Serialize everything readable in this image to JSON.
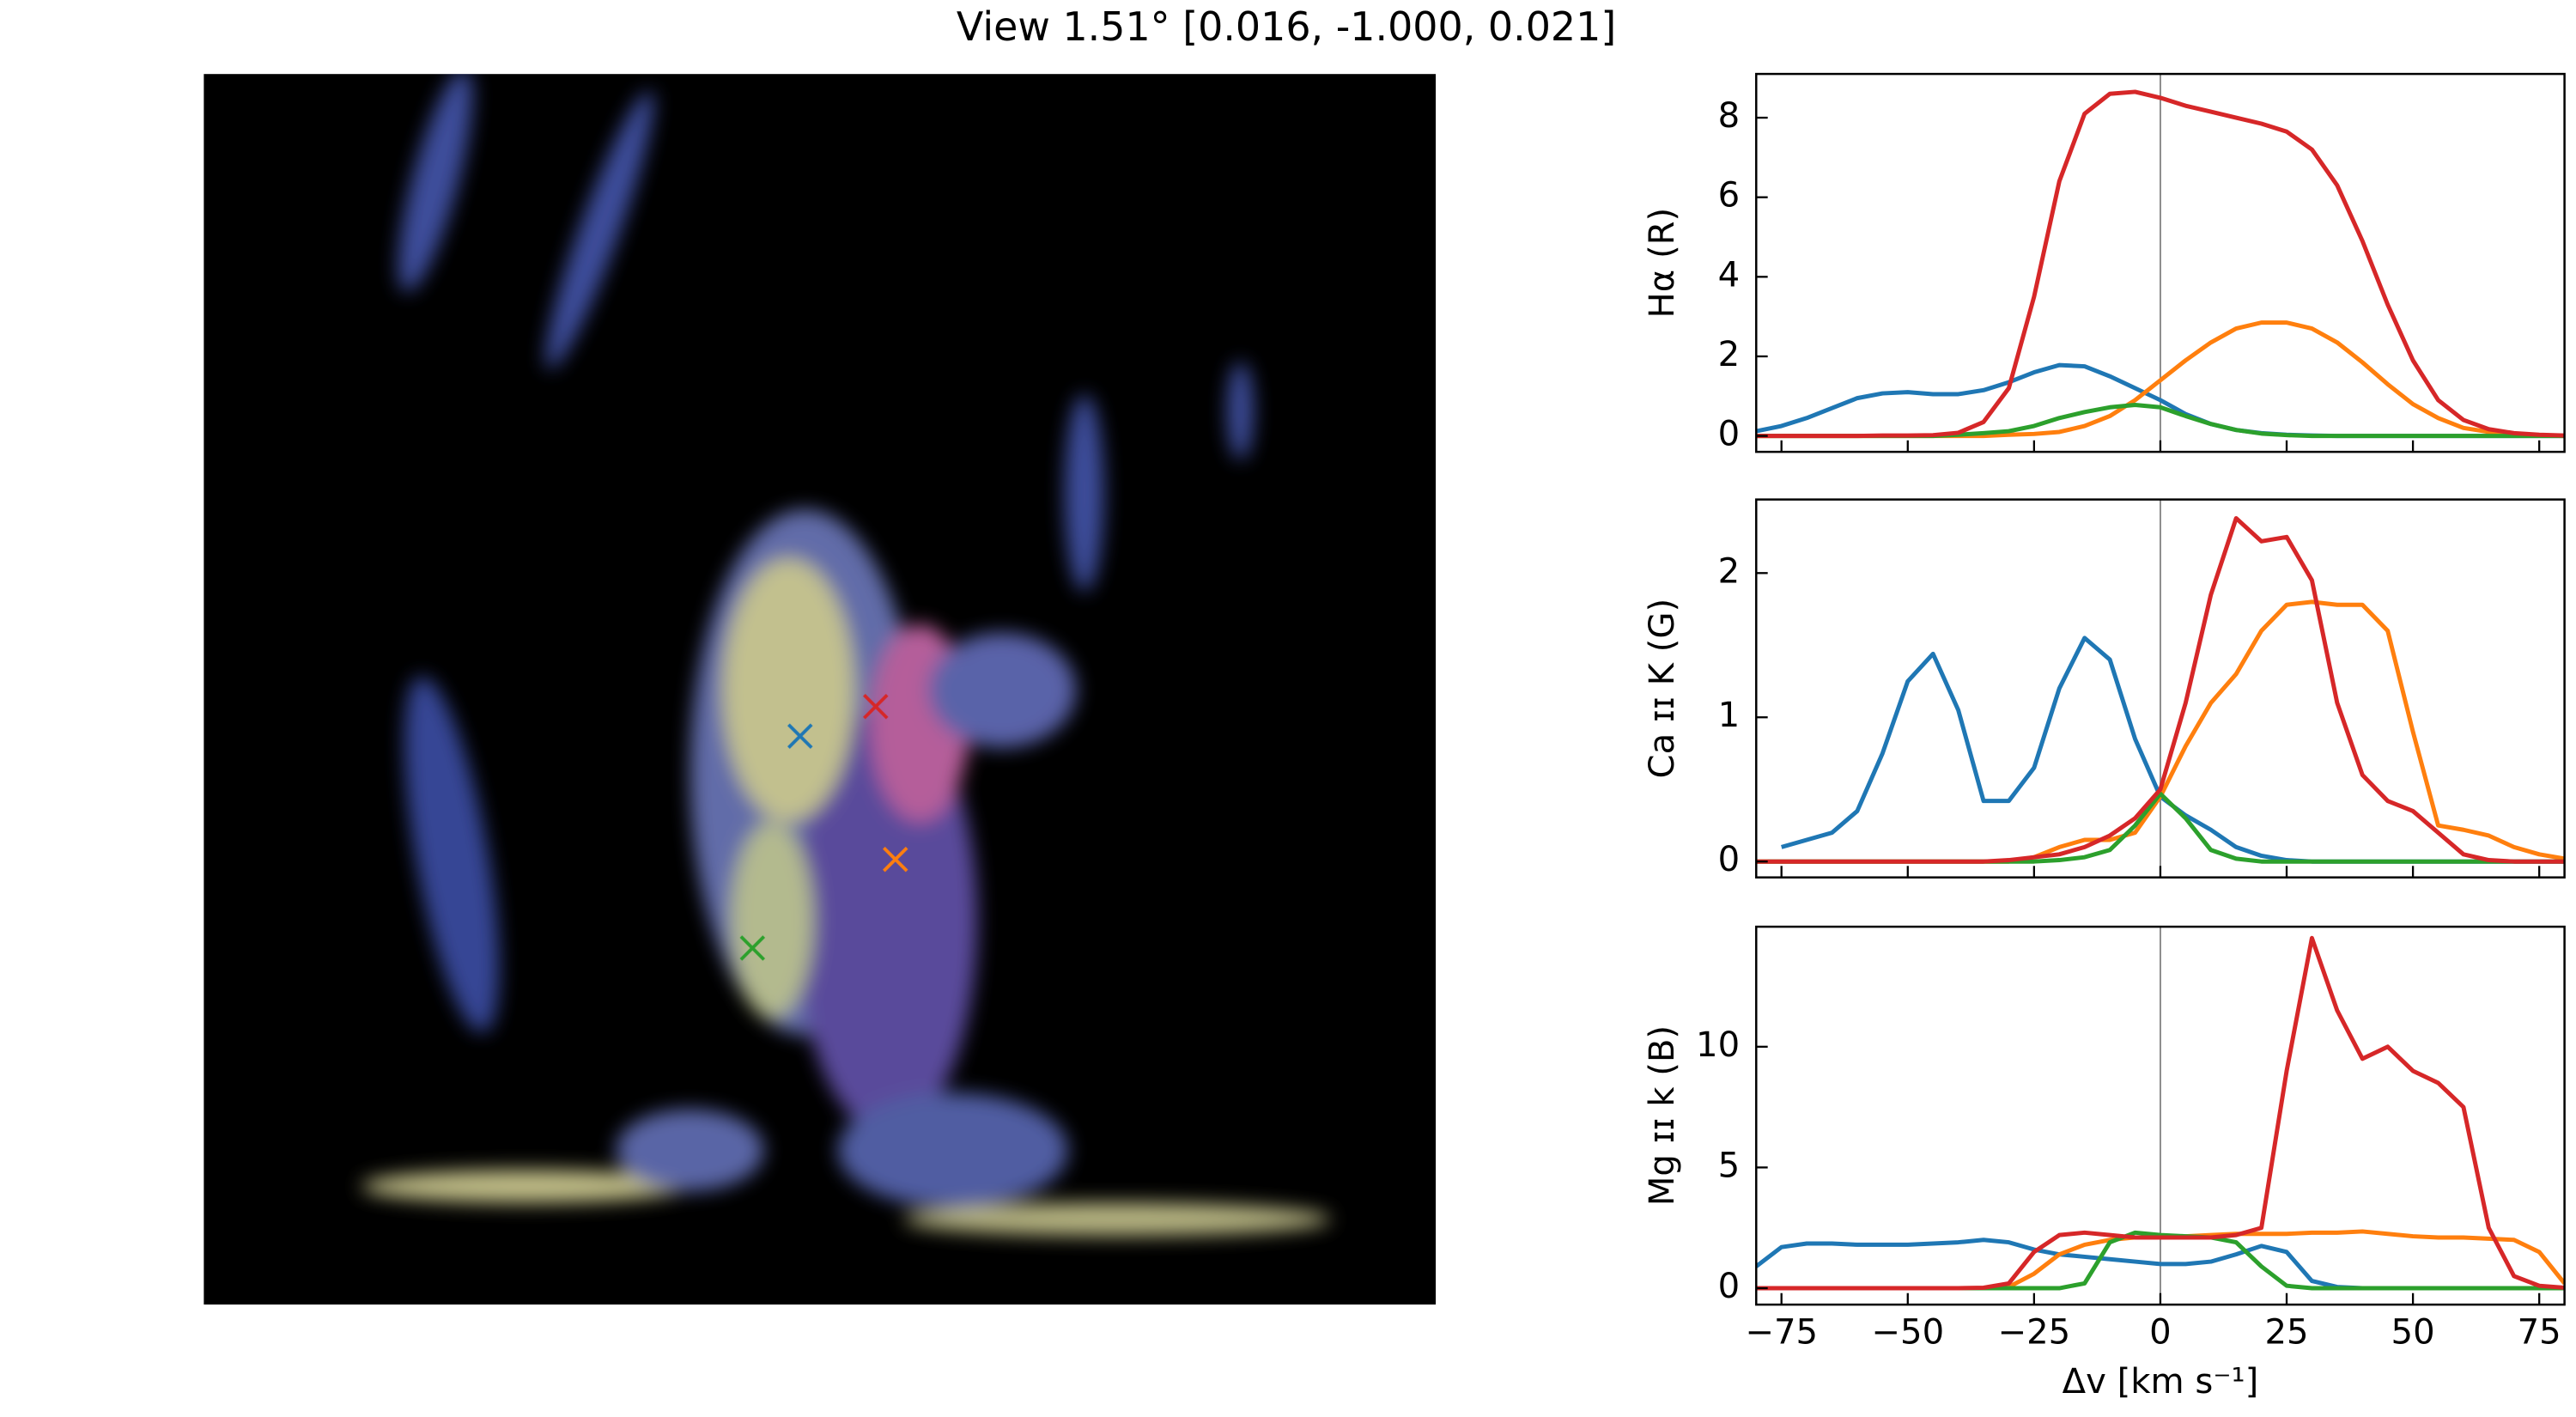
{
  "title": "View 1.51° [0.016, -1.000, 0.021]",
  "chart_data": [
    {
      "type": "line",
      "ylabel": "Hα (R)",
      "x": [
        -80,
        -75,
        -70,
        -65,
        -60,
        -55,
        -50,
        -45,
        -40,
        -35,
        -30,
        -25,
        -20,
        -15,
        -10,
        -5,
        0,
        5,
        10,
        15,
        20,
        25,
        30,
        35,
        40,
        45,
        50,
        55,
        60,
        65,
        70,
        75,
        80
      ],
      "series": [
        {
          "color": "#1f77b4",
          "values": [
            0.12,
            0.25,
            0.45,
            0.7,
            0.95,
            1.07,
            1.1,
            1.05,
            1.05,
            1.15,
            1.35,
            1.6,
            1.78,
            1.75,
            1.5,
            1.2,
            0.9,
            0.55,
            0.3,
            0.15,
            0.07,
            0.03,
            0.01,
            0,
            0,
            0,
            0,
            0,
            0,
            0,
            0,
            0,
            0
          ]
        },
        {
          "color": "#ff7f0e",
          "values": [
            0,
            0,
            0,
            0,
            0,
            0,
            0,
            0,
            0,
            0,
            0.03,
            0.05,
            0.1,
            0.25,
            0.5,
            0.9,
            1.4,
            1.9,
            2.35,
            2.7,
            2.85,
            2.85,
            2.7,
            2.35,
            1.85,
            1.3,
            0.8,
            0.45,
            0.2,
            0.1,
            0.04,
            0.01,
            0
          ]
        },
        {
          "color": "#2ca02c",
          "values": [
            0,
            0,
            0,
            0,
            0,
            0,
            0,
            0,
            0.03,
            0.07,
            0.12,
            0.25,
            0.45,
            0.6,
            0.72,
            0.78,
            0.72,
            0.5,
            0.3,
            0.15,
            0.06,
            0.02,
            0,
            0,
            0,
            0,
            0,
            0,
            0,
            0,
            0,
            0,
            0
          ]
        },
        {
          "color": "#d62728",
          "values": [
            0,
            0,
            0,
            0,
            0,
            0.01,
            0.01,
            0.02,
            0.08,
            0.35,
            1.2,
            3.5,
            6.4,
            8.1,
            8.6,
            8.65,
            8.5,
            8.3,
            8.15,
            8.0,
            7.85,
            7.65,
            7.2,
            6.3,
            4.9,
            3.3,
            1.9,
            0.9,
            0.4,
            0.17,
            0.07,
            0.03,
            0.01
          ]
        }
      ],
      "xlim": [
        -80,
        80
      ],
      "ylim": [
        -0.4,
        9.1
      ],
      "xticks": [
        -75,
        -50,
        -25,
        0,
        25,
        50,
        75
      ],
      "yticks": [
        0,
        2,
        4,
        6,
        8
      ],
      "show_xticklabels": false,
      "vline": 0
    },
    {
      "type": "line",
      "ylabel": "Ca ɪɪ K (G)",
      "x": [
        -80,
        -75,
        -70,
        -65,
        -60,
        -55,
        -50,
        -45,
        -40,
        -35,
        -30,
        -25,
        -20,
        -15,
        -10,
        -5,
        0,
        5,
        10,
        15,
        20,
        25,
        30,
        35,
        40,
        45,
        50,
        55,
        60,
        65,
        70,
        75,
        80
      ],
      "series": [
        {
          "color": "#1f77b4",
          "values": [
            null,
            0.1,
            0.15,
            0.2,
            0.35,
            0.75,
            1.25,
            1.44,
            1.05,
            0.42,
            0.42,
            0.65,
            1.2,
            1.55,
            1.4,
            0.85,
            0.45,
            0.32,
            0.22,
            0.1,
            0.04,
            0.01,
            0,
            0,
            0,
            0,
            0,
            0,
            0,
            0,
            0,
            0,
            0
          ]
        },
        {
          "color": "#ff7f0e",
          "values": [
            0,
            0,
            0,
            0,
            0,
            0,
            0,
            0,
            0,
            0,
            0,
            0.03,
            0.1,
            0.15,
            0.15,
            0.2,
            0.45,
            0.8,
            1.1,
            1.3,
            1.6,
            1.78,
            1.8,
            1.78,
            1.78,
            1.6,
            0.9,
            0.25,
            0.22,
            0.18,
            0.1,
            0.05,
            0.02
          ]
        },
        {
          "color": "#2ca02c",
          "values": [
            0,
            0,
            0,
            0,
            0,
            0,
            0,
            0,
            0,
            0,
            0,
            0,
            0.01,
            0.03,
            0.08,
            0.25,
            0.47,
            0.3,
            0.08,
            0.02,
            0,
            0,
            0,
            0,
            0,
            0,
            0,
            0,
            0,
            0,
            0,
            0,
            0
          ]
        },
        {
          "color": "#d62728",
          "values": [
            0,
            0,
            0,
            0,
            0,
            0,
            0,
            0,
            0,
            0,
            0.01,
            0.03,
            0.05,
            0.1,
            0.18,
            0.3,
            0.5,
            1.1,
            1.85,
            2.38,
            2.22,
            2.25,
            1.95,
            1.1,
            0.6,
            0.42,
            0.35,
            0.2,
            0.05,
            0.01,
            0,
            0,
            0
          ]
        }
      ],
      "xlim": [
        -80,
        80
      ],
      "ylim": [
        -0.11,
        2.51
      ],
      "xticks": [
        -75,
        -50,
        -25,
        0,
        25,
        50,
        75
      ],
      "yticks": [
        0,
        1,
        2
      ],
      "show_xticklabels": false,
      "vline": 0
    },
    {
      "type": "line",
      "ylabel": "Mg ɪɪ k (B)",
      "xlabel": "Δv [km s⁻¹]",
      "x": [
        -80,
        -75,
        -70,
        -65,
        -60,
        -55,
        -50,
        -45,
        -40,
        -35,
        -30,
        -25,
        -20,
        -15,
        -10,
        -5,
        0,
        5,
        10,
        15,
        20,
        25,
        30,
        35,
        40,
        45,
        50,
        55,
        60,
        65,
        70,
        75,
        80
      ],
      "series": [
        {
          "color": "#1f77b4",
          "values": [
            0.9,
            1.7,
            1.85,
            1.85,
            1.8,
            1.8,
            1.8,
            1.85,
            1.9,
            2.0,
            1.9,
            1.6,
            1.4,
            1.3,
            1.2,
            1.1,
            1.0,
            1.0,
            1.1,
            1.4,
            1.75,
            1.5,
            0.3,
            0.05,
            0,
            0,
            0,
            0,
            0,
            0,
            0,
            0,
            0
          ]
        },
        {
          "color": "#ff7f0e",
          "values": [
            0,
            0,
            0,
            0,
            0,
            0,
            0,
            0,
            0,
            0,
            0.05,
            0.6,
            1.4,
            1.8,
            2.0,
            2.1,
            2.1,
            2.15,
            2.2,
            2.25,
            2.25,
            2.25,
            2.3,
            2.3,
            2.35,
            2.25,
            2.15,
            2.1,
            2.1,
            2.05,
            2.0,
            1.5,
            0.2
          ]
        },
        {
          "color": "#2ca02c",
          "values": [
            0,
            0,
            0,
            0,
            0,
            0,
            0,
            0,
            0,
            0,
            0,
            0,
            0,
            0.2,
            1.9,
            2.3,
            2.2,
            2.15,
            2.1,
            1.9,
            0.9,
            0.1,
            0,
            0,
            0,
            0,
            0,
            0,
            0,
            0,
            0,
            0,
            0
          ]
        },
        {
          "color": "#d62728",
          "values": [
            0,
            0,
            0,
            0,
            0,
            0,
            0,
            0,
            0,
            0.02,
            0.2,
            1.5,
            2.2,
            2.3,
            2.2,
            2.1,
            2.1,
            2.1,
            2.1,
            2.2,
            2.5,
            9,
            14.5,
            11.5,
            9.5,
            10,
            9,
            8.5,
            7.5,
            2.5,
            0.5,
            0.1,
            0.02
          ]
        }
      ],
      "xlim": [
        -80,
        80
      ],
      "ylim": [
        -0.68,
        14.97
      ],
      "xticks": [
        {
          "value": -75,
          "label": "−75"
        },
        {
          "value": -50,
          "label": "−50"
        },
        {
          "value": -25,
          "label": "−25"
        },
        0,
        25,
        50,
        75
      ],
      "yticks": [
        0,
        5,
        10
      ],
      "show_xticklabels": true,
      "vline": 0
    }
  ]
}
